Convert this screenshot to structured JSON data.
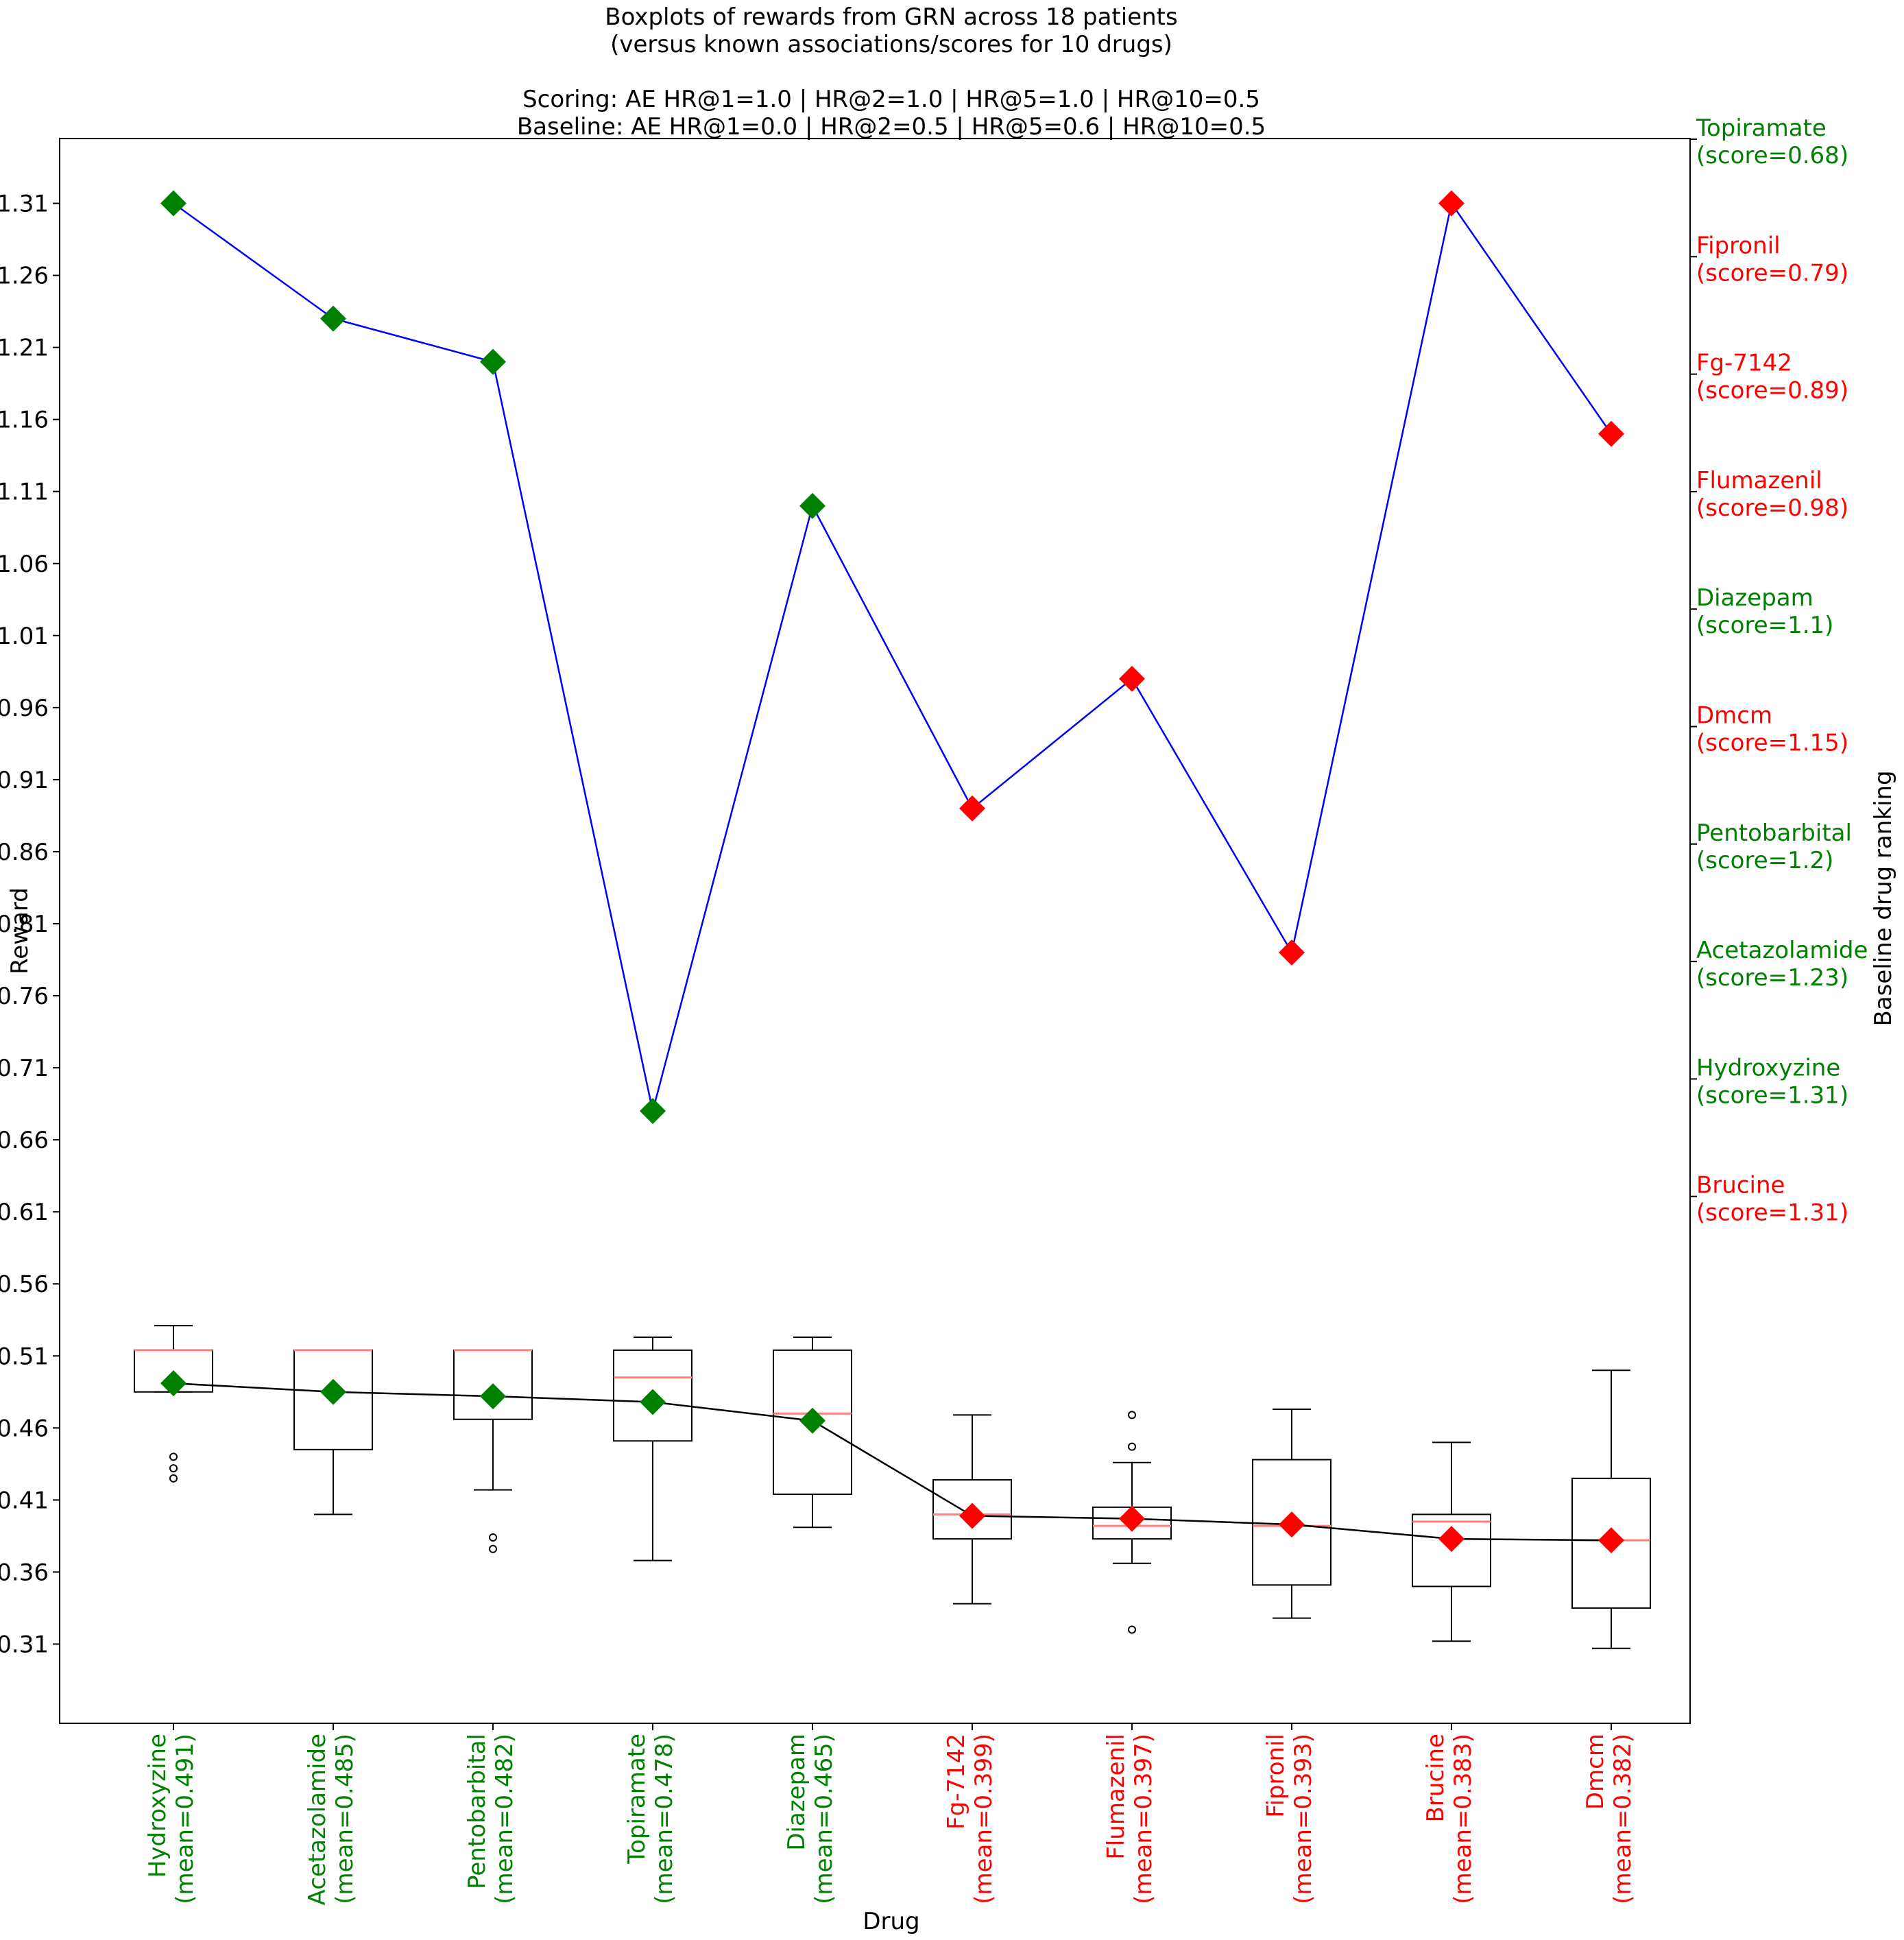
{
  "chart_data": {
    "type": "box",
    "title_lines": [
      "Boxplots of rewards from GRN across 18 patients",
      "(versus known associations/scores for 10 drugs)",
      "",
      "Scoring: AE HR@1=1.0 | HR@2=1.0 | HR@5=1.0 | HR@10=0.5",
      "Baseline: AE HR@1=0.0 | HR@2=0.5 | HR@5=0.6 | HR@10=0.5"
    ],
    "xlabel": "Drug",
    "ylabel": "Reward",
    "y2label": "Baseline drug ranking",
    "ylim": [
      0.255,
      1.355
    ],
    "yticks": [
      "0.31",
      "0.36",
      "0.41",
      "0.46",
      "0.51",
      "0.56",
      "0.61",
      "0.66",
      "0.71",
      "0.76",
      "0.81",
      "0.86",
      "0.91",
      "0.96",
      "1.01",
      "1.06",
      "1.11",
      "1.16",
      "1.21",
      "1.26",
      "1.31"
    ],
    "colors": {
      "known_association": "#008000",
      "no_association": "#ff0000",
      "baseline_line": "#0000ff",
      "mean_line": "#000000",
      "median": "#ff7f7f",
      "box": "#000000"
    },
    "drugs": [
      {
        "name": "Hydroxyzine",
        "mean_label": "(mean=0.491)",
        "mean": 0.491,
        "group": "known_association",
        "box": {
          "whislo": 0.485,
          "q1": 0.485,
          "med": 0.514,
          "q3": 0.514,
          "whishi": 0.531
        },
        "fliers": [
          0.425,
          0.432,
          0.44
        ],
        "baseline_score": 1.31
      },
      {
        "name": "Acetazolamide",
        "mean_label": "(mean=0.485)",
        "mean": 0.485,
        "group": "known_association",
        "box": {
          "whislo": 0.4,
          "q1": 0.445,
          "med": 0.514,
          "q3": 0.514,
          "whishi": 0.514
        },
        "fliers": [],
        "baseline_score": 1.23
      },
      {
        "name": "Pentobarbital",
        "mean_label": "(mean=0.482)",
        "mean": 0.482,
        "group": "known_association",
        "box": {
          "whislo": 0.417,
          "q1": 0.466,
          "med": 0.514,
          "q3": 0.514,
          "whishi": 0.514
        },
        "fliers": [
          0.376,
          0.384
        ],
        "baseline_score": 1.2
      },
      {
        "name": "Topiramate",
        "mean_label": "(mean=0.478)",
        "mean": 0.478,
        "group": "known_association",
        "box": {
          "whislo": 0.368,
          "q1": 0.451,
          "med": 0.495,
          "q3": 0.514,
          "whishi": 0.523
        },
        "fliers": [],
        "baseline_score": 0.68
      },
      {
        "name": "Diazepam",
        "mean_label": "(mean=0.465)",
        "mean": 0.465,
        "group": "known_association",
        "box": {
          "whislo": 0.391,
          "q1": 0.414,
          "med": 0.47,
          "q3": 0.514,
          "whishi": 0.523
        },
        "fliers": [],
        "baseline_score": 1.1
      },
      {
        "name": "Fg-7142",
        "mean_label": "(mean=0.399)",
        "mean": 0.399,
        "group": "no_association",
        "box": {
          "whislo": 0.338,
          "q1": 0.383,
          "med": 0.4,
          "q3": 0.424,
          "whishi": 0.469
        },
        "fliers": [],
        "baseline_score": 0.89
      },
      {
        "name": "Flumazenil",
        "mean_label": "(mean=0.397)",
        "mean": 0.397,
        "group": "no_association",
        "box": {
          "whislo": 0.366,
          "q1": 0.383,
          "med": 0.392,
          "q3": 0.405,
          "whishi": 0.436
        },
        "fliers": [
          0.32,
          0.447,
          0.469
        ],
        "baseline_score": 0.98
      },
      {
        "name": "Fipronil",
        "mean_label": "(mean=0.393)",
        "mean": 0.393,
        "group": "no_association",
        "box": {
          "whislo": 0.328,
          "q1": 0.351,
          "med": 0.392,
          "q3": 0.438,
          "whishi": 0.473
        },
        "fliers": [],
        "baseline_score": 0.79
      },
      {
        "name": "Brucine",
        "mean_label": "(mean=0.383)",
        "mean": 0.383,
        "group": "no_association",
        "box": {
          "whislo": 0.312,
          "q1": 0.35,
          "med": 0.395,
          "q3": 0.4,
          "whishi": 0.45
        },
        "fliers": [],
        "baseline_score": 1.31
      },
      {
        "name": "Dmcm",
        "mean_label": "(mean=0.382)",
        "mean": 0.382,
        "group": "no_association",
        "box": {
          "whislo": 0.307,
          "q1": 0.335,
          "med": 0.382,
          "q3": 0.425,
          "whishi": 0.5
        },
        "fliers": [],
        "baseline_score": 1.15
      }
    ],
    "baseline_ranking": [
      {
        "name": "Topiramate",
        "score_label": "(score=0.68)",
        "group": "known_association"
      },
      {
        "name": "Fipronil",
        "score_label": "(score=0.79)",
        "group": "no_association"
      },
      {
        "name": "Fg-7142",
        "score_label": "(score=0.89)",
        "group": "no_association"
      },
      {
        "name": "Flumazenil",
        "score_label": "(score=0.98)",
        "group": "no_association"
      },
      {
        "name": "Diazepam",
        "score_label": "(score=1.1)",
        "group": "known_association"
      },
      {
        "name": "Dmcm",
        "score_label": "(score=1.15)",
        "group": "no_association"
      },
      {
        "name": "Pentobarbital",
        "score_label": "(score=1.2)",
        "group": "known_association"
      },
      {
        "name": "Acetazolamide",
        "score_label": "(score=1.23)",
        "group": "known_association"
      },
      {
        "name": "Hydroxyzine",
        "score_label": "(score=1.31)",
        "group": "known_association"
      },
      {
        "name": "Brucine",
        "score_label": "(score=1.31)",
        "group": "no_association"
      }
    ]
  }
}
